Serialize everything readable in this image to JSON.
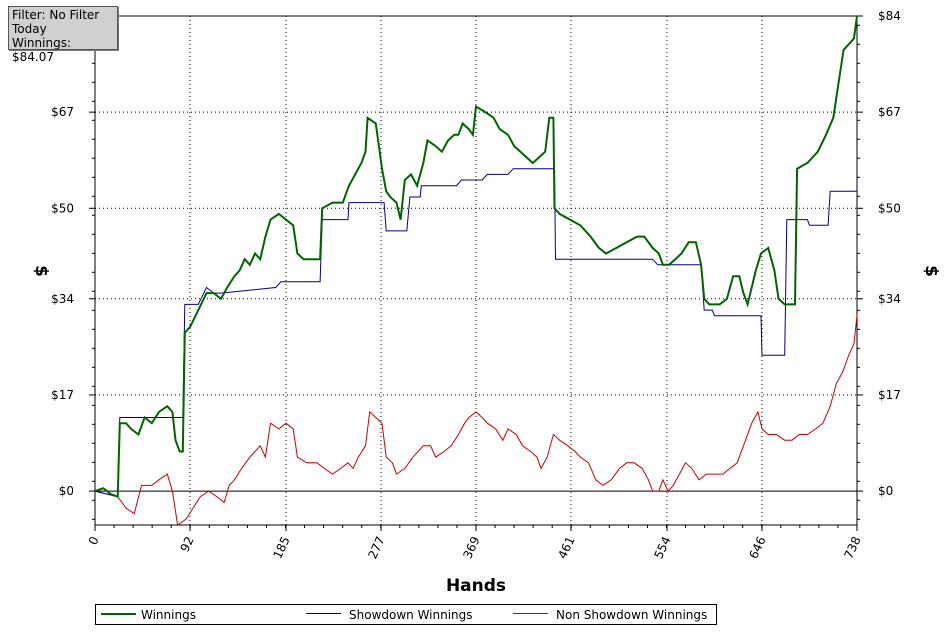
{
  "info": {
    "filter": "Filter: No Filter",
    "period": "Today",
    "winnings": "Winnings: $84.07"
  },
  "colors": {
    "winnings": "#006400",
    "showdown": "#00008b",
    "non_showdown": "#cc0000",
    "grid": "#000000"
  },
  "chart_data": {
    "type": "line",
    "xlabel": "Hands",
    "ylabel": "$",
    "x_ticks": [
      "0",
      "92",
      "185",
      "277",
      "369",
      "461",
      "554",
      "646",
      "738"
    ],
    "y_ticks": [
      "$0",
      "$17",
      "$34",
      "$50",
      "$67",
      "$84"
    ],
    "xlim": [
      0,
      738
    ],
    "ylim": [
      -6,
      84
    ],
    "grid": true,
    "legend_position": "bottom",
    "series": [
      {
        "name": "Winnings",
        "points": [
          [
            0,
            0
          ],
          [
            8,
            0.5
          ],
          [
            15,
            -0.5
          ],
          [
            22,
            -1
          ],
          [
            24,
            12
          ],
          [
            30,
            12
          ],
          [
            35,
            11
          ],
          [
            42,
            10
          ],
          [
            48,
            13
          ],
          [
            55,
            12
          ],
          [
            62,
            14
          ],
          [
            70,
            15
          ],
          [
            75,
            14
          ],
          [
            78,
            9
          ],
          [
            82,
            7
          ],
          [
            85,
            7
          ],
          [
            87,
            28
          ],
          [
            92,
            29
          ],
          [
            100,
            32
          ],
          [
            108,
            35
          ],
          [
            115,
            35
          ],
          [
            122,
            34
          ],
          [
            128,
            36
          ],
          [
            135,
            38
          ],
          [
            140,
            39
          ],
          [
            145,
            41
          ],
          [
            150,
            40
          ],
          [
            155,
            42
          ],
          [
            160,
            41
          ],
          [
            165,
            45
          ],
          [
            170,
            48
          ],
          [
            178,
            49
          ],
          [
            185,
            48
          ],
          [
            192,
            47
          ],
          [
            196,
            42
          ],
          [
            202,
            41
          ],
          [
            208,
            41
          ],
          [
            218,
            41
          ],
          [
            220,
            50
          ],
          [
            230,
            51
          ],
          [
            240,
            51
          ],
          [
            246,
            54
          ],
          [
            252,
            56
          ],
          [
            258,
            58
          ],
          [
            262,
            60
          ],
          [
            264,
            66
          ],
          [
            272,
            65
          ],
          [
            278,
            57
          ],
          [
            282,
            53
          ],
          [
            286,
            52
          ],
          [
            292,
            51
          ],
          [
            296,
            48
          ],
          [
            300,
            55
          ],
          [
            306,
            56
          ],
          [
            312,
            54
          ],
          [
            318,
            58
          ],
          [
            322,
            62
          ],
          [
            330,
            61
          ],
          [
            336,
            60
          ],
          [
            342,
            62
          ],
          [
            348,
            63
          ],
          [
            352,
            63
          ],
          [
            356,
            65
          ],
          [
            362,
            64
          ],
          [
            366,
            63
          ],
          [
            369,
            68
          ],
          [
            378,
            67
          ],
          [
            386,
            66
          ],
          [
            392,
            64
          ],
          [
            400,
            63
          ],
          [
            406,
            61
          ],
          [
            412,
            60
          ],
          [
            418,
            59
          ],
          [
            424,
            58
          ],
          [
            430,
            59
          ],
          [
            436,
            60
          ],
          [
            440,
            66
          ],
          [
            444,
            66
          ],
          [
            445,
            50
          ],
          [
            450,
            49
          ],
          [
            460,
            48
          ],
          [
            470,
            47
          ],
          [
            480,
            45
          ],
          [
            488,
            43
          ],
          [
            495,
            42
          ],
          [
            505,
            43
          ],
          [
            515,
            44
          ],
          [
            525,
            45
          ],
          [
            532,
            45
          ],
          [
            540,
            43
          ],
          [
            546,
            42
          ],
          [
            550,
            40
          ],
          [
            556,
            40
          ],
          [
            562,
            41
          ],
          [
            568,
            42
          ],
          [
            575,
            44
          ],
          [
            582,
            44
          ],
          [
            587,
            40
          ],
          [
            590,
            34
          ],
          [
            595,
            33
          ],
          [
            605,
            33
          ],
          [
            612,
            34
          ],
          [
            618,
            38
          ],
          [
            624,
            38
          ],
          [
            628,
            35
          ],
          [
            632,
            33
          ],
          [
            636,
            36
          ],
          [
            640,
            39
          ],
          [
            645,
            42
          ],
          [
            652,
            43
          ],
          [
            658,
            39
          ],
          [
            662,
            34
          ],
          [
            668,
            33
          ],
          [
            675,
            33
          ],
          [
            678,
            33
          ],
          [
            680,
            57
          ],
          [
            690,
            58
          ],
          [
            700,
            60
          ],
          [
            708,
            63
          ],
          [
            715,
            66
          ],
          [
            720,
            72
          ],
          [
            725,
            78
          ],
          [
            730,
            79
          ],
          [
            735,
            80
          ],
          [
            738,
            84
          ]
        ]
      },
      {
        "name": "Showdown Winnings",
        "points": [
          [
            0,
            0
          ],
          [
            22,
            -1
          ],
          [
            24,
            13
          ],
          [
            82,
            13
          ],
          [
            85,
            13
          ],
          [
            87,
            33
          ],
          [
            100,
            33
          ],
          [
            108,
            36
          ],
          [
            115,
            35
          ],
          [
            122,
            35
          ],
          [
            175,
            36
          ],
          [
            180,
            37
          ],
          [
            198,
            37
          ],
          [
            218,
            37
          ],
          [
            220,
            48
          ],
          [
            245,
            48
          ],
          [
            246,
            51
          ],
          [
            268,
            51
          ],
          [
            280,
            51
          ],
          [
            282,
            46
          ],
          [
            302,
            46
          ],
          [
            305,
            52
          ],
          [
            315,
            52
          ],
          [
            316,
            54
          ],
          [
            350,
            54
          ],
          [
            355,
            55
          ],
          [
            375,
            55
          ],
          [
            380,
            56
          ],
          [
            400,
            56
          ],
          [
            405,
            57
          ],
          [
            445,
            57
          ],
          [
            446,
            41
          ],
          [
            500,
            41
          ],
          [
            540,
            41
          ],
          [
            545,
            40
          ],
          [
            565,
            40
          ],
          [
            587,
            40
          ],
          [
            590,
            32
          ],
          [
            598,
            32
          ],
          [
            600,
            31
          ],
          [
            645,
            31
          ],
          [
            646,
            24
          ],
          [
            668,
            24
          ],
          [
            670,
            48
          ],
          [
            690,
            48
          ],
          [
            692,
            47
          ],
          [
            710,
            47
          ],
          [
            712,
            53
          ],
          [
            738,
            53
          ]
        ]
      },
      {
        "name": "Non Showdown Winnings",
        "points": [
          [
            0,
            0
          ],
          [
            22,
            -1
          ],
          [
            30,
            -3
          ],
          [
            38,
            -4
          ],
          [
            45,
            1
          ],
          [
            55,
            1
          ],
          [
            62,
            2
          ],
          [
            70,
            3
          ],
          [
            75,
            0
          ],
          [
            80,
            -6
          ],
          [
            88,
            -5
          ],
          [
            95,
            -3
          ],
          [
            102,
            -1
          ],
          [
            110,
            0
          ],
          [
            118,
            -1
          ],
          [
            125,
            -2
          ],
          [
            130,
            1
          ],
          [
            135,
            2
          ],
          [
            142,
            4
          ],
          [
            150,
            6
          ],
          [
            160,
            8
          ],
          [
            165,
            6
          ],
          [
            170,
            12
          ],
          [
            178,
            11
          ],
          [
            185,
            12
          ],
          [
            192,
            11
          ],
          [
            196,
            6
          ],
          [
            205,
            5
          ],
          [
            215,
            5
          ],
          [
            222,
            4
          ],
          [
            230,
            3
          ],
          [
            238,
            4
          ],
          [
            245,
            5
          ],
          [
            250,
            4
          ],
          [
            255,
            6
          ],
          [
            262,
            8
          ],
          [
            266,
            14
          ],
          [
            272,
            13
          ],
          [
            278,
            12
          ],
          [
            282,
            6
          ],
          [
            288,
            5
          ],
          [
            292,
            3
          ],
          [
            300,
            4
          ],
          [
            308,
            6
          ],
          [
            318,
            8
          ],
          [
            325,
            8
          ],
          [
            330,
            6
          ],
          [
            338,
            7
          ],
          [
            345,
            8
          ],
          [
            352,
            10
          ],
          [
            358,
            12
          ],
          [
            362,
            13
          ],
          [
            369,
            14
          ],
          [
            375,
            13
          ],
          [
            380,
            12
          ],
          [
            388,
            11
          ],
          [
            395,
            9
          ],
          [
            400,
            11
          ],
          [
            408,
            10
          ],
          [
            414,
            8
          ],
          [
            422,
            7
          ],
          [
            428,
            6
          ],
          [
            432,
            4
          ],
          [
            438,
            6
          ],
          [
            444,
            10
          ],
          [
            450,
            9
          ],
          [
            458,
            8
          ],
          [
            465,
            7
          ],
          [
            470,
            6
          ],
          [
            478,
            5
          ],
          [
            485,
            2
          ],
          [
            492,
            1
          ],
          [
            500,
            2
          ],
          [
            508,
            4
          ],
          [
            515,
            5
          ],
          [
            522,
            5
          ],
          [
            530,
            4
          ],
          [
            536,
            2
          ],
          [
            540,
            0
          ],
          [
            546,
            0
          ],
          [
            550,
            2
          ],
          [
            555,
            0
          ],
          [
            560,
            1
          ],
          [
            566,
            3
          ],
          [
            572,
            5
          ],
          [
            578,
            4
          ],
          [
            585,
            2
          ],
          [
            592,
            3
          ],
          [
            600,
            3
          ],
          [
            608,
            3
          ],
          [
            615,
            4
          ],
          [
            622,
            5
          ],
          [
            630,
            9
          ],
          [
            636,
            12
          ],
          [
            642,
            14
          ],
          [
            646,
            11
          ],
          [
            652,
            10
          ],
          [
            660,
            10
          ],
          [
            668,
            9
          ],
          [
            675,
            9
          ],
          [
            682,
            10
          ],
          [
            690,
            10
          ],
          [
            698,
            11
          ],
          [
            705,
            12
          ],
          [
            712,
            15
          ],
          [
            718,
            19
          ],
          [
            724,
            21
          ],
          [
            730,
            24
          ],
          [
            735,
            26
          ],
          [
            738,
            31
          ]
        ]
      }
    ]
  }
}
